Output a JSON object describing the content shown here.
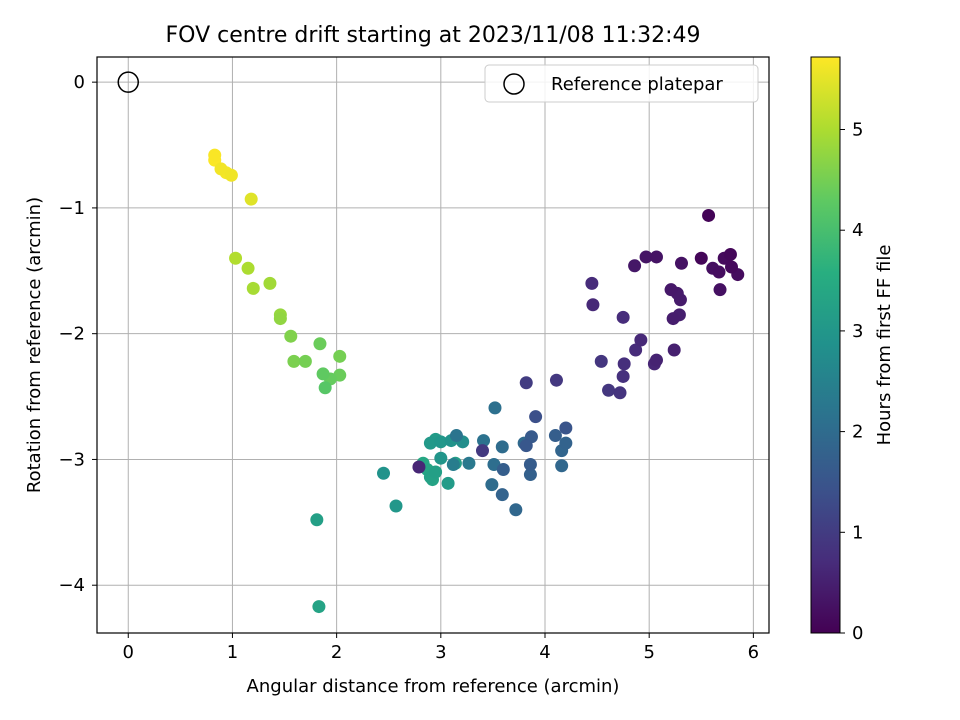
{
  "chart_data": {
    "type": "scatter",
    "title": "FOV centre drift starting at 2023/11/08 11:32:49",
    "xlabel": "Angular distance from reference (arcmin)",
    "ylabel": "Rotation from reference (arcmin)",
    "xlim": [
      -0.3,
      6.15
    ],
    "ylim": [
      -4.38,
      0.2
    ],
    "xticks": [
      0,
      1,
      2,
      3,
      4,
      5,
      6
    ],
    "yticks": [
      0,
      -1,
      -2,
      -3,
      -4
    ],
    "grid": true,
    "legend": {
      "placement": "top-right",
      "entries": [
        "Reference platepar"
      ]
    },
    "reference_point": {
      "x": 0,
      "y": 0,
      "marker": "open-circle"
    },
    "colorbar": {
      "label": "Hours from first FF file",
      "range": [
        0,
        5.72
      ],
      "ticks": [
        0,
        1,
        2,
        3,
        4,
        5
      ],
      "colormap": "viridis"
    },
    "points": [
      [
        5.57,
        -1.06,
        0.05
      ],
      [
        5.78,
        -1.37,
        0.1
      ],
      [
        5.72,
        -1.4,
        0.15
      ],
      [
        5.79,
        -1.47,
        0.12
      ],
      [
        5.85,
        -1.53,
        0.18
      ],
      [
        5.67,
        -1.51,
        0.2
      ],
      [
        5.61,
        -1.48,
        0.22
      ],
      [
        5.68,
        -1.65,
        0.25
      ],
      [
        5.5,
        -1.4,
        0.08
      ],
      [
        5.31,
        -1.44,
        0.28
      ],
      [
        5.07,
        -1.39,
        0.3
      ],
      [
        4.97,
        -1.39,
        0.32
      ],
      [
        4.86,
        -1.46,
        0.35
      ],
      [
        5.21,
        -1.65,
        0.38
      ],
      [
        5.27,
        -1.68,
        0.4
      ],
      [
        5.3,
        -1.73,
        0.42
      ],
      [
        5.23,
        -1.88,
        0.45
      ],
      [
        5.29,
        -1.85,
        0.48
      ],
      [
        5.24,
        -2.13,
        0.5
      ],
      [
        5.07,
        -2.21,
        0.55
      ],
      [
        5.05,
        -2.24,
        0.6
      ],
      [
        4.92,
        -2.05,
        0.65
      ],
      [
        4.87,
        -2.13,
        0.7
      ],
      [
        4.76,
        -2.24,
        0.75
      ],
      [
        4.75,
        -2.34,
        0.8
      ],
      [
        4.72,
        -2.47,
        0.85
      ],
      [
        4.61,
        -2.45,
        0.9
      ],
      [
        4.54,
        -2.22,
        0.88
      ],
      [
        4.46,
        -1.77,
        0.65
      ],
      [
        4.45,
        -1.6,
        0.7
      ],
      [
        4.75,
        -1.87,
        0.72
      ],
      [
        4.11,
        -2.37,
        0.92
      ],
      [
        3.82,
        -2.39,
        1.0
      ],
      [
        3.4,
        -2.93,
        0.95
      ],
      [
        2.79,
        -3.06,
        0.6
      ],
      [
        3.91,
        -2.66,
        1.4
      ],
      [
        4.2,
        -2.75,
        1.5
      ],
      [
        3.87,
        -2.82,
        1.6
      ],
      [
        4.1,
        -2.81,
        1.7
      ],
      [
        4.2,
        -2.87,
        1.8
      ],
      [
        4.16,
        -2.93,
        1.85
      ],
      [
        4.16,
        -3.05,
        1.9
      ],
      [
        3.86,
        -3.04,
        1.65
      ],
      [
        3.86,
        -3.12,
        1.75
      ],
      [
        3.8,
        -2.87,
        1.95
      ],
      [
        3.82,
        -2.89,
        1.55
      ],
      [
        3.59,
        -2.9,
        2.0
      ],
      [
        3.6,
        -3.08,
        1.7
      ],
      [
        3.51,
        -3.04,
        2.05
      ],
      [
        3.59,
        -3.28,
        1.8
      ],
      [
        3.49,
        -3.2,
        2.0
      ],
      [
        3.72,
        -3.4,
        1.9
      ],
      [
        3.52,
        -2.59,
        2.1
      ],
      [
        3.41,
        -2.85,
        2.15
      ],
      [
        3.15,
        -2.81,
        2.2
      ],
      [
        3.27,
        -3.03,
        2.3
      ],
      [
        3.12,
        -3.04,
        2.4
      ],
      [
        3.21,
        -2.86,
        2.8
      ],
      [
        3.1,
        -2.85,
        2.9
      ],
      [
        3.0,
        -2.86,
        3.0
      ],
      [
        2.95,
        -2.84,
        3.1
      ],
      [
        2.9,
        -2.87,
        3.05
      ],
      [
        3.0,
        -2.99,
        2.95
      ],
      [
        3.14,
        -3.03,
        3.15
      ],
      [
        2.95,
        -3.1,
        3.2
      ],
      [
        2.9,
        -3.14,
        3.25
      ],
      [
        2.92,
        -3.16,
        3.3
      ],
      [
        2.87,
        -3.08,
        3.35
      ],
      [
        2.83,
        -3.03,
        3.4
      ],
      [
        3.07,
        -3.19,
        3.1
      ],
      [
        2.45,
        -3.11,
        2.9
      ],
      [
        2.57,
        -3.37,
        3.0
      ],
      [
        1.81,
        -3.48,
        3.2
      ],
      [
        1.83,
        -4.17,
        3.3
      ],
      [
        1.89,
        -2.43,
        4.2
      ],
      [
        1.87,
        -2.32,
        4.3
      ],
      [
        1.94,
        -2.36,
        4.35
      ],
      [
        2.03,
        -2.33,
        4.4
      ],
      [
        2.03,
        -2.18,
        4.5
      ],
      [
        1.84,
        -2.08,
        4.4
      ],
      [
        1.7,
        -2.22,
        4.5
      ],
      [
        1.59,
        -2.22,
        4.55
      ],
      [
        1.56,
        -2.02,
        4.6
      ],
      [
        1.46,
        -1.85,
        4.8
      ],
      [
        1.46,
        -1.88,
        4.75
      ],
      [
        1.36,
        -1.6,
        4.9
      ],
      [
        1.2,
        -1.64,
        4.95
      ],
      [
        1.15,
        -1.48,
        5.0
      ],
      [
        1.03,
        -1.4,
        5.05
      ],
      [
        1.18,
        -0.93,
        5.45
      ],
      [
        0.99,
        -0.74,
        5.6
      ],
      [
        0.94,
        -0.72,
        5.65
      ],
      [
        0.89,
        -0.69,
        5.62
      ],
      [
        0.83,
        -0.62,
        5.7
      ],
      [
        0.83,
        -0.58,
        5.68
      ]
    ]
  }
}
